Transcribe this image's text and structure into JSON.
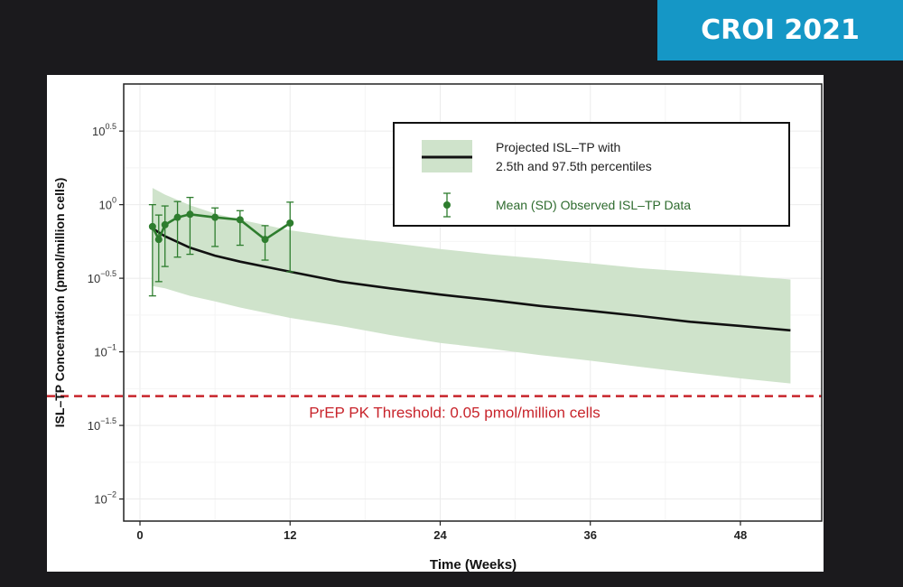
{
  "badge": {
    "text": "CROI 2021"
  },
  "chart_data": {
    "type": "line",
    "xlabel": "Time (Weeks)",
    "ylabel": "ISL–TP Concentration (pmol/million cells)",
    "x_ticks": [
      0,
      12,
      24,
      36,
      48
    ],
    "x_range": [
      -1.3,
      54.5
    ],
    "y_scale": "log10",
    "y_ticks": [
      {
        "value": -2,
        "base": "10",
        "exp": "−2"
      },
      {
        "value": -1.5,
        "base": "10",
        "exp": "−1.5"
      },
      {
        "value": -1,
        "base": "10",
        "exp": "−1"
      },
      {
        "value": -0.5,
        "base": "10",
        "exp": "−0.5"
      },
      {
        "value": 0,
        "base": "10",
        "exp": "0"
      },
      {
        "value": 0.5,
        "base": "10",
        "exp": "0.5"
      }
    ],
    "y_range_log10": [
      -2.15,
      0.82
    ],
    "grid": true,
    "legend_position": "top-right",
    "series": [
      {
        "name": "Projected ISL–TP with 2.5th and 97.5th percentiles",
        "kind": "line_with_band",
        "color": "#111111",
        "band_color": "#cfe3cb",
        "x": [
          1,
          2,
          4,
          6,
          8,
          12,
          16,
          20,
          24,
          28,
          32,
          36,
          40,
          44,
          48,
          52
        ],
        "median": [
          0.69,
          0.61,
          0.51,
          0.45,
          0.41,
          0.35,
          0.3,
          0.27,
          0.245,
          0.225,
          0.205,
          0.19,
          0.175,
          0.16,
          0.15,
          0.14
        ],
        "lower": [
          0.28,
          0.27,
          0.24,
          0.22,
          0.2,
          0.17,
          0.15,
          0.13,
          0.115,
          0.105,
          0.095,
          0.087,
          0.079,
          0.072,
          0.066,
          0.061
        ],
        "upper": [
          1.3,
          1.17,
          0.99,
          0.87,
          0.79,
          0.67,
          0.6,
          0.55,
          0.5,
          0.46,
          0.43,
          0.4,
          0.37,
          0.35,
          0.33,
          0.31
        ]
      },
      {
        "name": "Mean (SD) Observed ISL–TP Data",
        "kind": "points_with_errorbars",
        "color": "#2e7d2e",
        "x": [
          1,
          1.5,
          2,
          3,
          4,
          6,
          8,
          10,
          12
        ],
        "y": [
          0.71,
          0.58,
          0.73,
          0.82,
          0.86,
          0.82,
          0.79,
          0.58,
          0.75
        ],
        "y_low": [
          0.24,
          0.3,
          0.38,
          0.44,
          0.46,
          0.52,
          0.53,
          0.42,
          0.35
        ],
        "y_high": [
          1.0,
          0.85,
          0.98,
          1.05,
          1.12,
          0.95,
          0.91,
          0.72,
          1.04
        ]
      }
    ],
    "threshold": {
      "y": 0.05,
      "label": "PrEP PK Threshold: 0.05 pmol/million cells",
      "color": "#c8242b"
    }
  }
}
